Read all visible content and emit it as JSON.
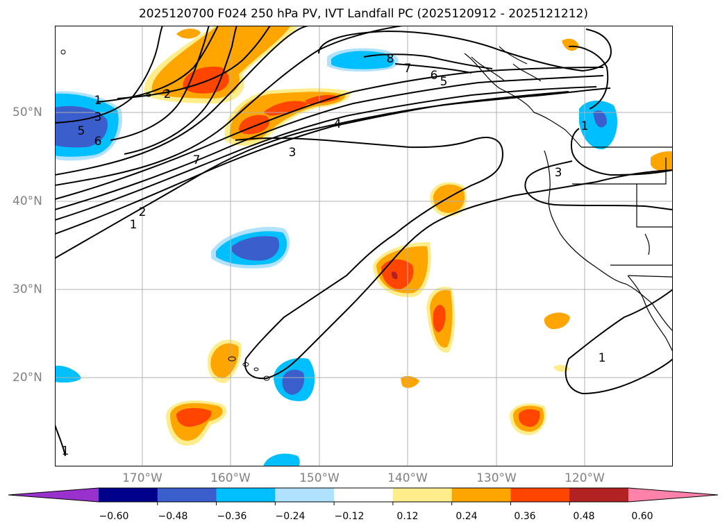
{
  "title": "2025120700 F024 250 hPa PV, IVT Landfall PC (2025120912 - 2025121212)",
  "map": {
    "lat_labels": [
      "50°N",
      "40°N",
      "30°N",
      "20°N"
    ],
    "lon_labels": [
      "170°W",
      "160°W",
      "150°W",
      "140°W",
      "130°W",
      "120°W"
    ],
    "contour_labels": [
      "1",
      "3",
      "5",
      "6",
      "2",
      "7",
      "8",
      "7",
      "6",
      "5",
      "4",
      "3",
      "3",
      "1",
      "2",
      "1",
      "1",
      "1"
    ],
    "grid_color": "#b0b0b0",
    "contour_color": "#000000",
    "coast_color": "#000000"
  },
  "colorbar": {
    "tick_labels": [
      "−0.60",
      "−0.48",
      "−0.36",
      "−0.24",
      "−0.12",
      "0.12",
      "0.24",
      "0.36",
      "0.48",
      "0.60"
    ],
    "colors": [
      "#9932cc",
      "#00008b",
      "#3a5fcd",
      "#00bfff",
      "#b0e2ff",
      "#ffffff",
      "#ffec8b",
      "#ffa500",
      "#ff4500",
      "#b22222",
      "#ff82ab"
    ]
  }
}
